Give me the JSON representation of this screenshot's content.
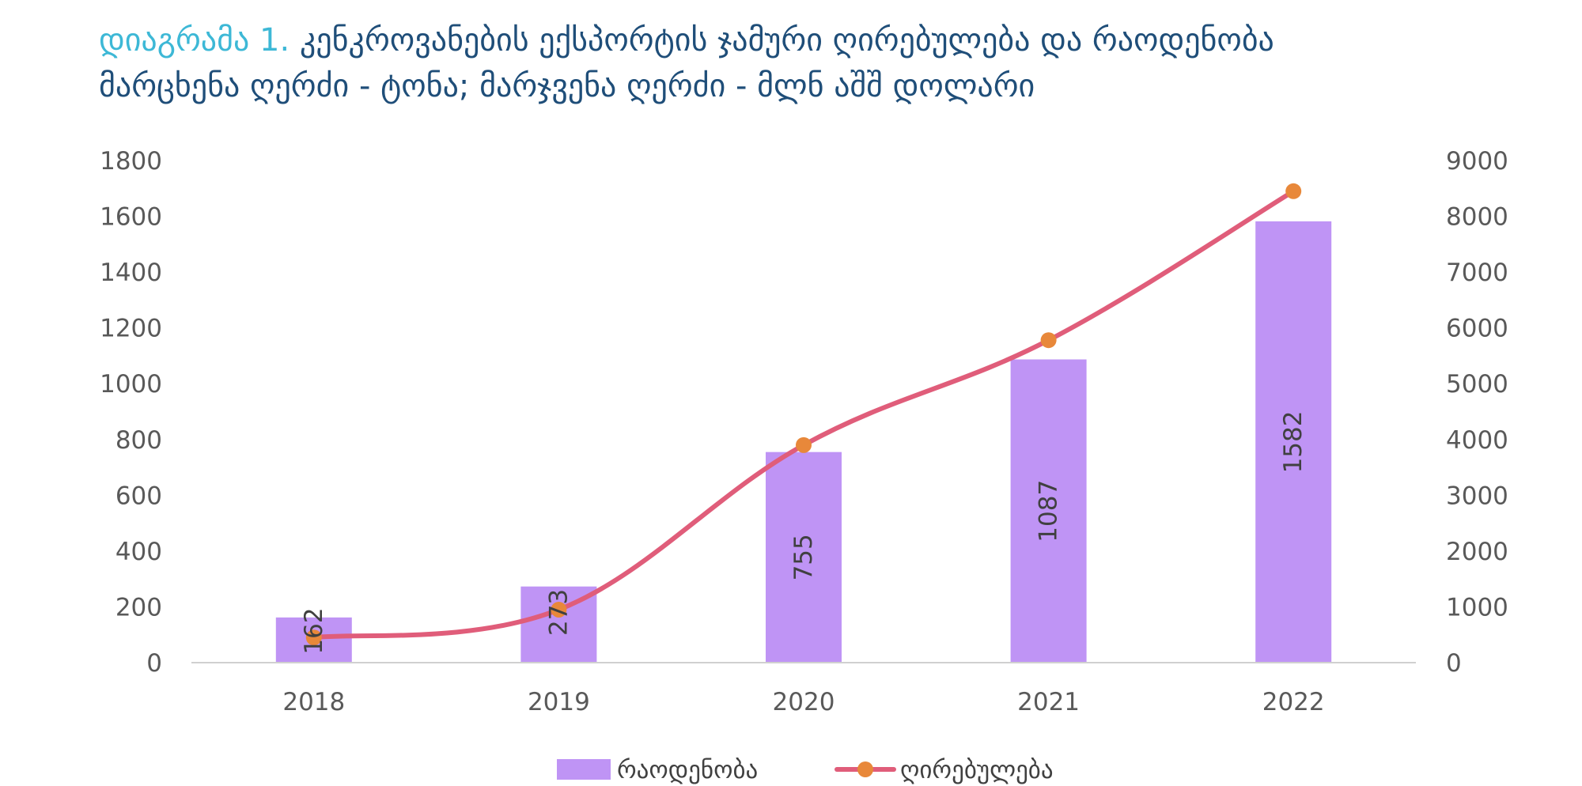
{
  "title": {
    "prefix": "დიაგრამა 1.",
    "main": "კენკროვანების ექსპორტის ჯამური ღირებულება და რაოდენობა",
    "subtitle": "მარცხენა ღერძი - ტონა; მარჯვენა ღერძი - მლნ აშშ დოლარი"
  },
  "chart_data": {
    "type": "bar",
    "categories": [
      "2018",
      "2019",
      "2020",
      "2021",
      "2022"
    ],
    "series": [
      {
        "name": "რაოდენობა",
        "type": "bar",
        "axis": "left",
        "values": [
          162,
          273,
          755,
          1087,
          1582
        ],
        "color": "#bf94f5"
      },
      {
        "name": "ღირებულება",
        "type": "line",
        "axis": "right",
        "values": [
          450,
          950,
          3900,
          5780,
          8450
        ],
        "color": "#e05d7a",
        "marker_color": "#e8883a"
      }
    ],
    "y_left": {
      "ylim": [
        0,
        1800
      ],
      "ticks": [
        "0",
        "200",
        "400",
        "600",
        "800",
        "1000",
        "1200",
        "1400",
        "1600",
        "1800"
      ]
    },
    "y_right": {
      "ylim": [
        0,
        9000
      ],
      "ticks": [
        "0",
        "1000",
        "2000",
        "3000",
        "4000",
        "5000",
        "6000",
        "7000",
        "8000",
        "9000"
      ]
    },
    "data_labels": [
      "162",
      "273",
      "755",
      "1087",
      "1582"
    ],
    "grid": false,
    "legend_position": "bottom"
  }
}
